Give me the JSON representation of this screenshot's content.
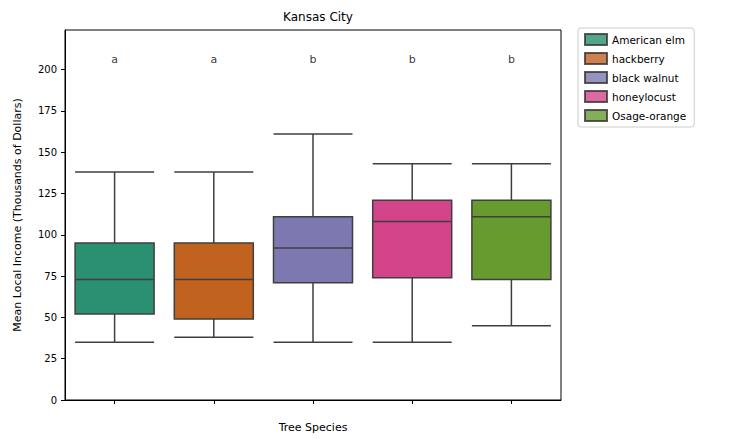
{
  "chart_data": {
    "type": "boxplot",
    "title": "Kansas City",
    "x_label": "Tree Species",
    "y_label": "Mean Local Income (Thousands of Dollars)",
    "categories": [
      "American elm",
      "hackberry",
      "black walnut",
      "honeylocust",
      "Osage-orange"
    ],
    "series": [
      {
        "name": "American elm",
        "color": "#2b8f71",
        "values": [
          35,
          52,
          73,
          95,
          138
        ]
      },
      {
        "name": "hackberry",
        "color": "#c2621f",
        "values": [
          38,
          49,
          73,
          95,
          138
        ]
      },
      {
        "name": "black walnut",
        "color": "#7d78b0",
        "values": [
          35,
          71,
          92,
          111,
          161
        ]
      },
      {
        "name": "honeylocust",
        "color": "#d3448b",
        "values": [
          35,
          74,
          108,
          121,
          143
        ]
      },
      {
        "name": "Osage-orange",
        "color": "#679a2f",
        "values": [
          45,
          73,
          111,
          121,
          143
        ]
      }
    ],
    "annotations": [
      {
        "category": "American elm",
        "y": 206,
        "text": "a"
      },
      {
        "category": "hackberry",
        "y": 206,
        "text": "a"
      },
      {
        "category": "black walnut",
        "y": 206,
        "text": "b"
      },
      {
        "category": "honeylocust",
        "y": 206,
        "text": "b"
      },
      {
        "category": "Osage-orange",
        "y": 206,
        "text": "b"
      }
    ],
    "ylim": [
      0,
      224
    ],
    "yticks": [
      0,
      25,
      50,
      75,
      100,
      125,
      150,
      175,
      200
    ],
    "tick_labels": "y",
    "legend": "right",
    "grid": false
  }
}
